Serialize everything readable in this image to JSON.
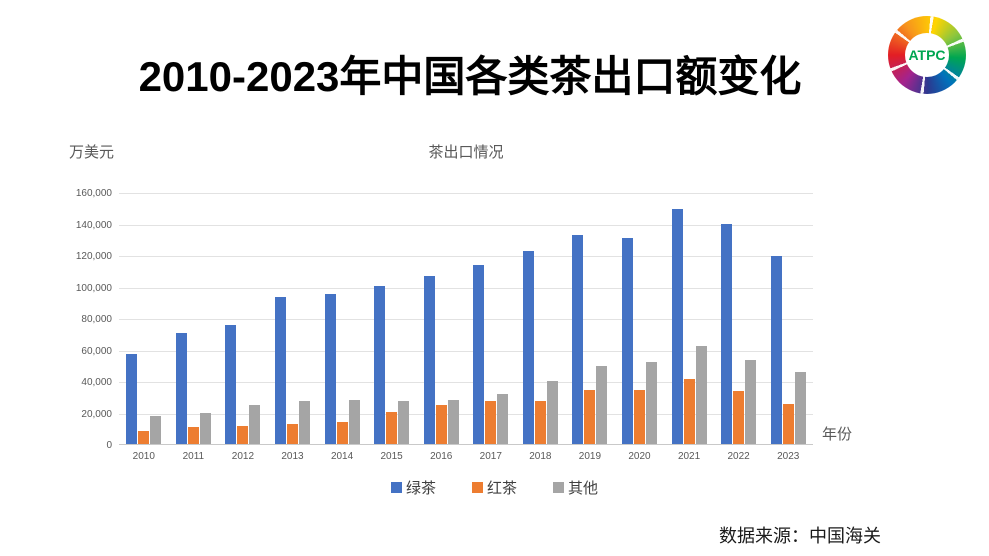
{
  "page": {
    "title": "2010-2023年中国各类茶出口额变化"
  },
  "logo": {
    "text": "ATPC"
  },
  "chart": {
    "unit_label": "万美元",
    "title": "茶出口情况",
    "x_axis_label": "年份"
  },
  "chart_data": {
    "type": "bar",
    "title": "茶出口情况",
    "ylabel": "万美元",
    "xlabel": "年份",
    "ylim": [
      0,
      160000
    ],
    "ytick_step": 20000,
    "grid": true,
    "legend_position": "bottom",
    "categories": [
      "2010",
      "2011",
      "2012",
      "2013",
      "2014",
      "2015",
      "2016",
      "2017",
      "2018",
      "2019",
      "2020",
      "2021",
      "2022",
      "2023"
    ],
    "series": [
      {
        "name": "绿茶",
        "color": "#4472C4",
        "values": [
          57000,
          70500,
          75500,
          93500,
          95500,
          100500,
          106500,
          113500,
          122500,
          132500,
          130500,
          149000,
          139500,
          119500
        ]
      },
      {
        "name": "红茶",
        "color": "#ED7D31",
        "values": [
          8000,
          10500,
          11500,
          12500,
          14000,
          20500,
          25000,
          27500,
          27500,
          34500,
          34000,
          41000,
          33500,
          25500
        ]
      },
      {
        "name": "其他",
        "color": "#A5A5A5",
        "values": [
          17500,
          20000,
          24500,
          27500,
          28000,
          27000,
          28000,
          31500,
          40000,
          49500,
          52000,
          62500,
          53500,
          46000
        ]
      }
    ]
  },
  "source": {
    "label": "数据来源：中国海关"
  }
}
